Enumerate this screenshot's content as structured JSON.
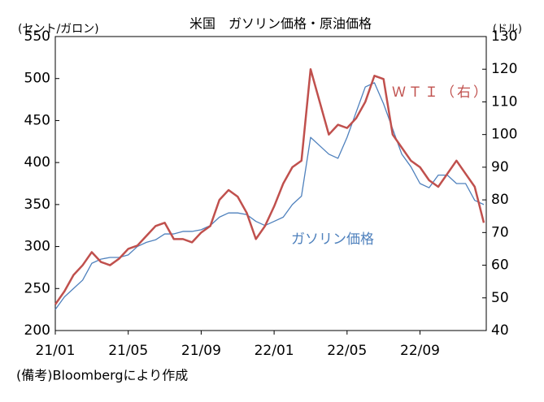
{
  "chart_data": {
    "type": "line",
    "title": "米国　ガソリン価格・原油価格",
    "y_label": "(セント/ガロン)",
    "y2_label": "(ドル)",
    "note": "(備考)Bloombergにより作成",
    "categories": [
      "21/01",
      null,
      null,
      null,
      null,
      null,
      null,
      null,
      "21/05",
      null,
      null,
      null,
      null,
      null,
      null,
      null,
      "21/09",
      null,
      null,
      null,
      null,
      null,
      null,
      null,
      "22/01",
      null,
      null,
      null,
      null,
      null,
      null,
      null,
      "22/05",
      null,
      null,
      null,
      null,
      null,
      null,
      null,
      "22/09",
      null,
      null,
      null,
      null,
      null,
      null,
      null
    ],
    "series": [
      {
        "name": "ガソリン価格",
        "color": "#4f81bd",
        "axis": "y",
        "values": [
          225,
          240,
          250,
          260,
          280,
          285,
          287,
          287,
          290,
          300,
          305,
          308,
          315,
          315,
          318,
          318,
          320,
          325,
          335,
          340,
          340,
          338,
          330,
          325,
          330,
          335,
          350,
          360,
          430,
          420,
          410,
          405,
          430,
          460,
          490,
          495,
          470,
          440,
          410,
          395,
          375,
          370,
          385,
          385,
          375,
          375,
          355,
          350
        ]
      },
      {
        "name": "ＷＴＩ（右）",
        "color": "#c0504d",
        "axis": "y2",
        "values": [
          48,
          52,
          57,
          60,
          64,
          61,
          60,
          62,
          65,
          66,
          69,
          72,
          73,
          68,
          68,
          67,
          70,
          72,
          80,
          83,
          81,
          76,
          68,
          72,
          78,
          85,
          90,
          92,
          120,
          110,
          100,
          103,
          102,
          105,
          110,
          118,
          117,
          100,
          96,
          92,
          90,
          86,
          84,
          88,
          92,
          88,
          84,
          73
        ]
      }
    ],
    "ylim": [
      200,
      550
    ],
    "yticks": [
      200,
      250,
      300,
      350,
      400,
      450,
      500,
      550
    ],
    "y2lim": [
      40,
      130
    ],
    "y2ticks": [
      40,
      50,
      60,
      70,
      80,
      90,
      100,
      110,
      120,
      130
    ]
  }
}
